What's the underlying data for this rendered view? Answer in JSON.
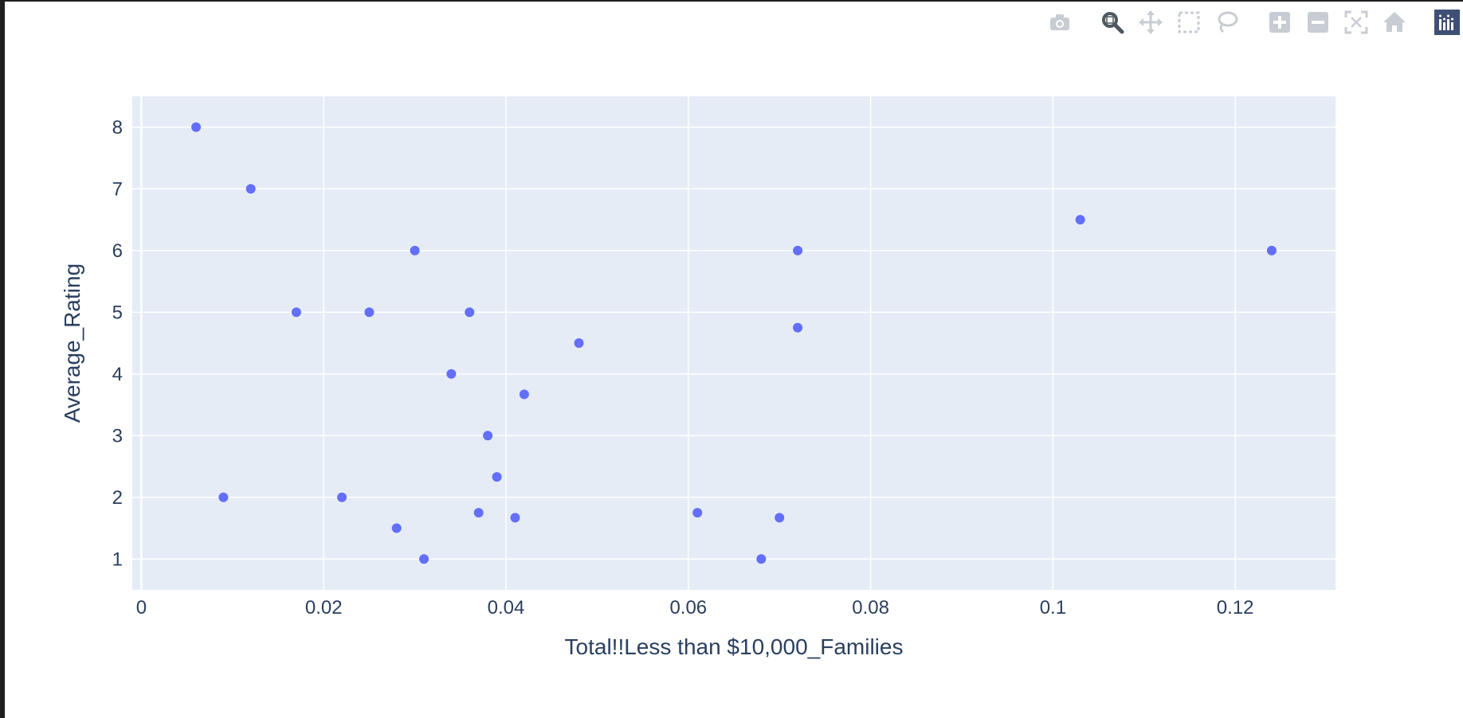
{
  "modebar": {
    "buttons": [
      {
        "icon": "camera-icon",
        "name": "download-plot-button",
        "active": false
      },
      {
        "icon": "zoom-icon",
        "name": "zoom-button",
        "active": true
      },
      {
        "icon": "pan-icon",
        "name": "pan-button",
        "active": false
      },
      {
        "icon": "box-select-icon",
        "name": "box-select-button",
        "active": false
      },
      {
        "icon": "lasso-icon",
        "name": "lasso-select-button",
        "active": false
      },
      {
        "icon": "zoom-in-icon",
        "name": "zoom-in-button",
        "active": false
      },
      {
        "icon": "zoom-out-icon",
        "name": "zoom-out-button",
        "active": false
      },
      {
        "icon": "autoscale-icon",
        "name": "autoscale-button",
        "active": false
      },
      {
        "icon": "home-icon",
        "name": "reset-axes-button",
        "active": false
      },
      {
        "icon": "plotly-logo-icon",
        "name": "plotly-logo",
        "active": false
      }
    ]
  },
  "colors": {
    "marker": "#636efa",
    "plot_bg": "#e5ecf6",
    "grid": "#ffffff",
    "text": "#2a3f5f",
    "icon_inactive": "#c8ccd3",
    "icon_active": "#505862",
    "logo_bg": "#3f4f75"
  },
  "chart_data": {
    "type": "scatter",
    "xlabel": "Total!!Less than $10,000_Families",
    "ylabel": "Average_Rating",
    "xlim": [
      -0.001,
      0.131
    ],
    "ylim": [
      0.5,
      8.5
    ],
    "x_ticks": [
      0,
      0.02,
      0.04,
      0.06,
      0.08,
      0.1,
      0.12
    ],
    "x_tick_labels": [
      "0",
      "0.02",
      "0.04",
      "0.06",
      "0.08",
      "0.1",
      "0.12"
    ],
    "y_ticks": [
      1,
      2,
      3,
      4,
      5,
      6,
      7,
      8
    ],
    "y_tick_labels": [
      "1",
      "2",
      "3",
      "4",
      "5",
      "6",
      "7",
      "8"
    ],
    "grid": true,
    "legend": "none",
    "points": [
      {
        "x": 0.006,
        "y": 8
      },
      {
        "x": 0.012,
        "y": 7
      },
      {
        "x": 0.009,
        "y": 2
      },
      {
        "x": 0.017,
        "y": 5
      },
      {
        "x": 0.022,
        "y": 2
      },
      {
        "x": 0.025,
        "y": 5
      },
      {
        "x": 0.028,
        "y": 1.5
      },
      {
        "x": 0.03,
        "y": 6
      },
      {
        "x": 0.031,
        "y": 1
      },
      {
        "x": 0.034,
        "y": 4
      },
      {
        "x": 0.036,
        "y": 5
      },
      {
        "x": 0.037,
        "y": 1.75
      },
      {
        "x": 0.038,
        "y": 3
      },
      {
        "x": 0.039,
        "y": 2.33
      },
      {
        "x": 0.041,
        "y": 1.67
      },
      {
        "x": 0.042,
        "y": 3.67
      },
      {
        "x": 0.048,
        "y": 4.5
      },
      {
        "x": 0.061,
        "y": 1.75
      },
      {
        "x": 0.068,
        "y": 1
      },
      {
        "x": 0.07,
        "y": 1.67
      },
      {
        "x": 0.072,
        "y": 6
      },
      {
        "x": 0.072,
        "y": 4.75
      },
      {
        "x": 0.103,
        "y": 6.5
      },
      {
        "x": 0.124,
        "y": 6
      }
    ]
  }
}
